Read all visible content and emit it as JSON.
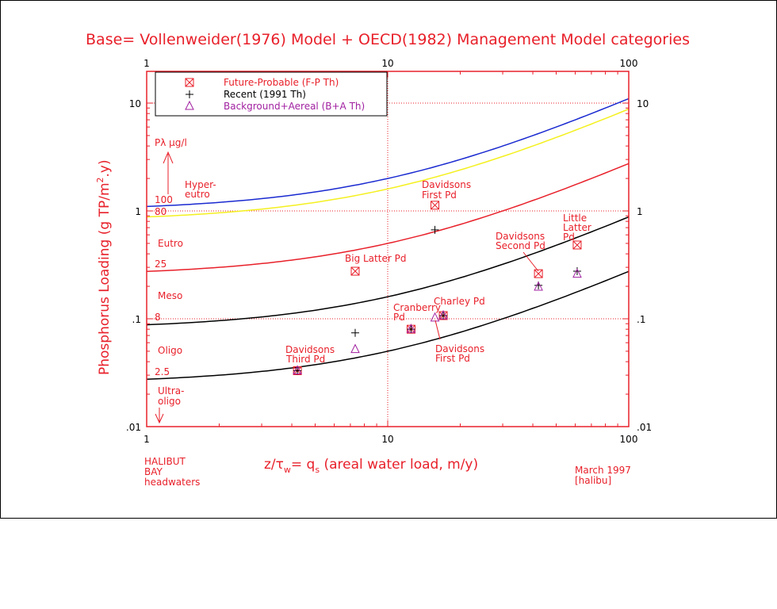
{
  "chart_data": {
    "type": "line",
    "title": "Base= Vollenweider(1976) Model + OECD(1982) Management Model categories",
    "xlabel": "z/τw= qs (areal water load, m/y)",
    "xlabel_parts": {
      "a": "z/τ",
      "b": "w",
      "c": "= q",
      "d": "s",
      "e": " (areal water load, m/y)"
    },
    "ylabel": "Phosphorus Loading (g TP/m2.y)",
    "ylabel_parts": {
      "a": "Phosphorus Loading (g TP/m",
      "b": "2",
      "c": ".y)"
    },
    "xscale": "log",
    "yscale": "log",
    "xlim": [
      1,
      100
    ],
    "ylim": [
      0.01,
      19.7
    ],
    "x_ticks": [
      "1",
      "10",
      "100"
    ],
    "y_ticks": [
      "10",
      "1",
      ".1",
      ".01"
    ],
    "legend": {
      "placement": "top-left",
      "entries": [
        {
          "symbol": "⊠",
          "label": "Future-Probable (F-P Th)",
          "color": "#e8202a"
        },
        {
          "symbol": "+",
          "label": "Recent (1991 Th)",
          "color": "#000000"
        },
        {
          "symbol": "△",
          "label": "Background+Aereal (B+A Th)",
          "color": "#a020a0"
        }
      ]
    },
    "curves": [
      {
        "P": 100,
        "label": "100",
        "color": "#1a2ad0"
      },
      {
        "P": 80,
        "label": "80",
        "color": "#f4f020"
      },
      {
        "P": 25,
        "label": "25",
        "color": "#e8202a"
      },
      {
        "P": 8,
        "label": "8",
        "color": "#000000"
      },
      {
        "P": 2.5,
        "label": "2.5",
        "color": "#000000"
      }
    ],
    "curve_formula": "L = P*(qs+10)/1000",
    "zones": {
      "p_label": "Pλ µg/l",
      "hyper_1": "Hyper-",
      "hyper_2": "eutro",
      "eutro": "Eutro",
      "meso": "Meso",
      "oligo": "Oligo",
      "ultra_1": "Ultra-",
      "ultra_2": "oligo"
    },
    "series": [
      {
        "name": "Future-Probable (F-P Th)",
        "points": [
          {
            "site": "Davidsons First Pd",
            "x": 15.7,
            "y": 1.13
          },
          {
            "site": "Big Latter Pd",
            "x": 7.33,
            "y": 0.276
          },
          {
            "site": "Davidsons Third Pd",
            "x": 4.22,
            "y": 0.033
          },
          {
            "site": "Cranberry Pd",
            "x": 12.5,
            "y": 0.08
          },
          {
            "site": "Charley Pd",
            "x": 17.0,
            "y": 0.107
          },
          {
            "site": "Davidsons Second Pd",
            "x": 42.2,
            "y": 0.262
          },
          {
            "site": "Little Latter Pd",
            "x": 61.1,
            "y": 0.483
          }
        ]
      },
      {
        "name": "Recent (1991 Th)",
        "points": [
          {
            "site": "Davidsons First Pd",
            "x": 15.7,
            "y": 0.667
          },
          {
            "site": "Big Latter Pd",
            "x": 7.33,
            "y": 0.074
          },
          {
            "site": "Davidsons Third Pd",
            "x": 4.22,
            "y": 0.033
          },
          {
            "site": "Cranberry Pd",
            "x": 12.5,
            "y": 0.08
          },
          {
            "site": "Charley Pd",
            "x": 17.0,
            "y": 0.107
          },
          {
            "site": "Davidsons Second Pd",
            "x": 42.2,
            "y": 0.204
          },
          {
            "site": "Little Latter Pd",
            "x": 61.1,
            "y": 0.276
          }
        ]
      },
      {
        "name": "Background+Aereal (B+A Th)",
        "points": [
          {
            "site": "Davidsons First Pd",
            "x": 15.7,
            "y": 0.102
          },
          {
            "site": "Big Latter Pd",
            "x": 7.33,
            "y": 0.052
          },
          {
            "site": "Davidsons Third Pd",
            "x": 4.22,
            "y": 0.033
          },
          {
            "site": "Cranberry Pd",
            "x": 12.5,
            "y": 0.08
          },
          {
            "site": "Charley Pd",
            "x": 17.0,
            "y": 0.107
          },
          {
            "site": "Davidsons Second Pd",
            "x": 42.2,
            "y": 0.197
          },
          {
            "site": "Little Latter Pd",
            "x": 61.1,
            "y": 0.26
          }
        ]
      }
    ],
    "annotations": {
      "dav_first_top_1": "Davidsons",
      "dav_first_top_2": "First Pd",
      "little_1": "Little",
      "little_2": "Latter",
      "little_3": "Pd",
      "dav_second_1": "Davidsons",
      "dav_second_2": "Second Pd",
      "big_latter": "Big Latter Pd",
      "cranberry_1": "Cranberry",
      "cranberry_2": "Pd",
      "charley": "Charley Pd",
      "dav_first_bot_1": "Davidsons",
      "dav_first_bot_2": "First Pd",
      "dav_third_1": "Davidsons",
      "dav_third_2": "Third Pd"
    },
    "footer": {
      "site_1": "HALIBUT",
      "site_2": "BAY",
      "site_3": "headwaters",
      "date": "March 1997",
      "code": "[halibu]"
    }
  }
}
